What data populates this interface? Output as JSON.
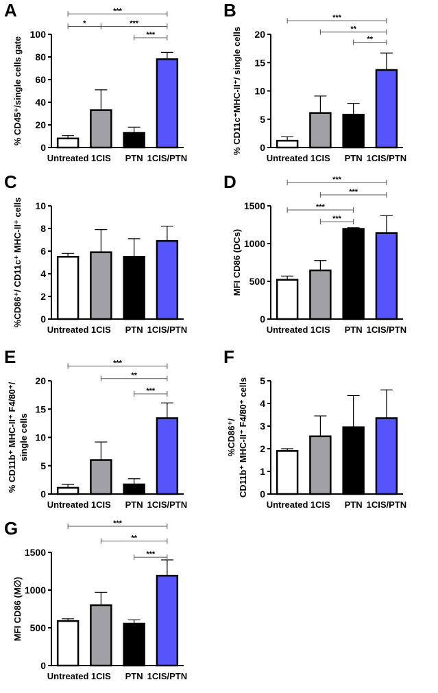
{
  "colors": {
    "Untreated": "#ffffff",
    "1CIS": "#a1a1a5",
    "PTN": "#000000",
    "1CIS/PTN": "#5555fb"
  },
  "chart_data": [
    {
      "panel": "A",
      "type": "bar",
      "categories": [
        "Untreated",
        "1CIS",
        "PTN",
        "1CIS/PTN"
      ],
      "values": [
        8,
        33,
        13,
        78
      ],
      "errors": [
        2.5,
        18,
        5,
        6
      ],
      "ylabel": [
        "% CD45⁺/single cells gate"
      ],
      "ylim": [
        0,
        100
      ],
      "yticks": [
        0,
        20,
        40,
        60,
        80,
        100
      ],
      "significance": [
        {
          "from": 0,
          "to": 3,
          "label": "***",
          "y": 118
        },
        {
          "from": 0,
          "to": 1,
          "label": "*",
          "y": 107
        },
        {
          "from": 1,
          "to": 3,
          "label": "***",
          "y": 107
        },
        {
          "from": 2,
          "to": 3,
          "label": "***",
          "y": 97
        }
      ]
    },
    {
      "panel": "B",
      "type": "bar",
      "categories": [
        "Untreated",
        "1CIS",
        "PTN",
        "1CIS/PTN"
      ],
      "values": [
        1.2,
        6.1,
        5.8,
        13.7
      ],
      "errors": [
        0.7,
        3,
        2,
        3
      ],
      "ylabel": [
        "% CD11c⁺MHC-II⁺/ single cells"
      ],
      "ylim": [
        0,
        20
      ],
      "yticks": [
        0,
        5,
        10,
        15,
        20
      ],
      "significance": [
        {
          "from": 0,
          "to": 3,
          "label": "***",
          "y": 22.4
        },
        {
          "from": 1,
          "to": 3,
          "label": "**",
          "y": 20.4
        },
        {
          "from": 2,
          "to": 3,
          "label": "**",
          "y": 18.6
        }
      ]
    },
    {
      "panel": "C",
      "type": "bar",
      "categories": [
        "Untreated",
        "1CIS",
        "PTN",
        "1CIS/PTN"
      ],
      "values": [
        5.5,
        5.9,
        5.5,
        6.9
      ],
      "errors": [
        0.3,
        2,
        1.6,
        1.3
      ],
      "ylabel": [
        "%CD86⁺/ CD11c⁺ MHC-II⁺ cells"
      ],
      "ylim": [
        0,
        10
      ],
      "yticks": [
        0,
        2,
        4,
        6,
        8,
        10
      ],
      "significance": []
    },
    {
      "panel": "D",
      "type": "bar",
      "categories": [
        "Untreated",
        "1CIS",
        "PTN",
        "1CIS/PTN"
      ],
      "values": [
        520,
        645,
        1195,
        1140
      ],
      "errors": [
        50,
        130,
        15,
        230
      ],
      "ylabel": [
        "MFI CD86 (DCs)"
      ],
      "ylim": [
        0,
        1500
      ],
      "yticks": [
        0,
        500,
        1000,
        1500
      ],
      "significance": [
        {
          "from": 0,
          "to": 3,
          "label": "***",
          "y": 1810
        },
        {
          "from": 1,
          "to": 3,
          "label": "***",
          "y": 1645
        },
        {
          "from": 0,
          "to": 2,
          "label": "***",
          "y": 1445
        },
        {
          "from": 1,
          "to": 2,
          "label": "***",
          "y": 1290
        }
      ]
    },
    {
      "panel": "E",
      "type": "bar",
      "categories": [
        "Untreated",
        "1CIS",
        "PTN",
        "1CIS/PTN"
      ],
      "values": [
        1.1,
        6,
        1.7,
        13.4
      ],
      "errors": [
        0.6,
        3.2,
        1,
        2.7
      ],
      "ylabel": [
        "% CD11b⁺ MHC-II⁺ F4/80⁺/",
        "single cells"
      ],
      "ylim": [
        0,
        20
      ],
      "yticks": [
        0,
        5,
        10,
        15,
        20
      ],
      "significance": [
        {
          "from": 0,
          "to": 3,
          "label": "***",
          "y": 22.6
        },
        {
          "from": 1,
          "to": 3,
          "label": "**",
          "y": 20.4
        },
        {
          "from": 2,
          "to": 3,
          "label": "***",
          "y": 17.7
        }
      ]
    },
    {
      "panel": "F",
      "type": "bar",
      "categories": [
        "Untreated",
        "1CIS",
        "PTN",
        "1CIS/PTN"
      ],
      "values": [
        1.9,
        2.55,
        2.95,
        3.35
      ],
      "errors": [
        0.1,
        0.9,
        1.4,
        1.25
      ],
      "ylabel": [
        "%CD86⁺/",
        "CD11b⁺ MHC-II⁺ F4/80⁺ cells"
      ],
      "ylim": [
        0,
        5
      ],
      "yticks": [
        0,
        1,
        2,
        3,
        4,
        5
      ],
      "significance": []
    },
    {
      "panel": "G",
      "type": "bar",
      "categories": [
        "Untreated",
        "1CIS",
        "PTN",
        "1CIS/PTN"
      ],
      "values": [
        590,
        800,
        555,
        1190
      ],
      "errors": [
        30,
        170,
        50,
        210
      ],
      "ylabel": [
        "MFI CD86 (M∅)"
      ],
      "ylim": [
        0,
        1500
      ],
      "yticks": [
        0,
        500,
        1000,
        1500
      ],
      "significance": [
        {
          "from": 0,
          "to": 3,
          "label": "***",
          "y": 1845
        },
        {
          "from": 1,
          "to": 3,
          "label": "**",
          "y": 1650
        },
        {
          "from": 2,
          "to": 3,
          "label": "***",
          "y": 1435
        }
      ]
    }
  ]
}
